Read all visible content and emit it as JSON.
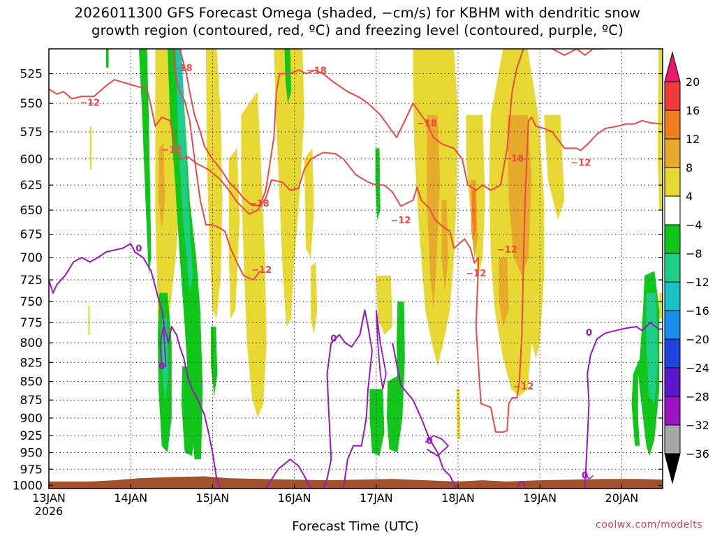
{
  "title": {
    "line1": "2026011300 GFS Forecast Omega (shaded, −cm/s) for KBHM with dendritic snow",
    "line2": "growth region (contoured, red, ºC) and freezing level (contoured, purple, ºC)"
  },
  "credit": "coolwx.com/modelts",
  "chart_data": {
    "type": "heatmap",
    "xlabel": "Forecast Time (UTC)",
    "x_ticks": [
      {
        "label": "13JAN",
        "sub": "2026",
        "day": 0
      },
      {
        "label": "14JAN",
        "day": 1
      },
      {
        "label": "15JAN",
        "day": 2
      },
      {
        "label": "16JAN",
        "day": 3
      },
      {
        "label": "17JAN",
        "day": 4
      },
      {
        "label": "18JAN",
        "day": 5
      },
      {
        "label": "19JAN",
        "day": 6
      },
      {
        "label": "20JAN",
        "day": 7
      }
    ],
    "xlim": [
      0,
      7.5
    ],
    "y_ticks": [
      525,
      550,
      575,
      600,
      625,
      650,
      675,
      700,
      725,
      750,
      775,
      800,
      825,
      850,
      875,
      900,
      925,
      950,
      975,
      1000
    ],
    "ylim": [
      1005,
      505
    ],
    "y_scale": "log-pressure",
    "grid": "dotted",
    "colorbar": {
      "labels": [
        "20",
        "16",
        "12",
        "8",
        "4",
        "−4",
        "−8",
        "−12",
        "−16",
        "−20",
        "−24",
        "−28",
        "−32",
        "−36"
      ],
      "colors": [
        "#e8186a",
        "#ee3b3b",
        "#f07d22",
        "#e8aa2c",
        "#e7d834",
        "#ffffff",
        "#11c61a",
        "#1fce86",
        "#19c2c7",
        "#1a8cec",
        "#1f43de",
        "#5b17c9",
        "#9a13c5",
        "#a7a7a7"
      ]
    },
    "colors": {
      "omega_pos_light": "#e7d834",
      "omega_pos_mid": "#e8aa2c",
      "omega_pos_strong": "#f07d22",
      "omega_neg_green": "#11c61a",
      "omega_neg_teal": "#1fce86",
      "omega_neg_cyan": "#19c2c7",
      "dgz_contour": "#f04646",
      "freezing_contour": "#9a13c5",
      "terrain": "#a0522d"
    },
    "dgz_contour_labels": [
      {
        "value": "−12",
        "day": 0.5,
        "p": 549
      },
      {
        "value": "−18",
        "day": 1.63,
        "p": 520
      },
      {
        "value": "−12",
        "day": 1.5,
        "p": 591
      },
      {
        "value": "−18",
        "day": 2.57,
        "p": 643
      },
      {
        "value": "−12",
        "day": 2.6,
        "p": 713
      },
      {
        "value": "−18",
        "day": 3.27,
        "p": 522
      },
      {
        "value": "−12",
        "day": 4.3,
        "p": 660
      },
      {
        "value": "−18",
        "day": 4.62,
        "p": 567
      },
      {
        "value": "−12",
        "day": 5.22,
        "p": 717
      },
      {
        "value": "−18",
        "day": 5.68,
        "p": 599
      },
      {
        "value": "−12",
        "day": 5.6,
        "p": 691
      },
      {
        "value": "−12",
        "day": 5.8,
        "p": 856
      },
      {
        "value": "−12",
        "day": 6.5,
        "p": 603
      }
    ],
    "freezing_contour_labels": [
      {
        "value": "0",
        "day": 1.1,
        "p": 690
      },
      {
        "value": "0",
        "day": 1.38,
        "p": 829
      },
      {
        "value": "0",
        "day": 3.48,
        "p": 794
      },
      {
        "value": "0",
        "day": 4.65,
        "p": 932
      },
      {
        "value": "0",
        "day": 6.6,
        "p": 787
      },
      {
        "value": "0",
        "day": 6.55,
        "p": 984
      }
    ]
  }
}
